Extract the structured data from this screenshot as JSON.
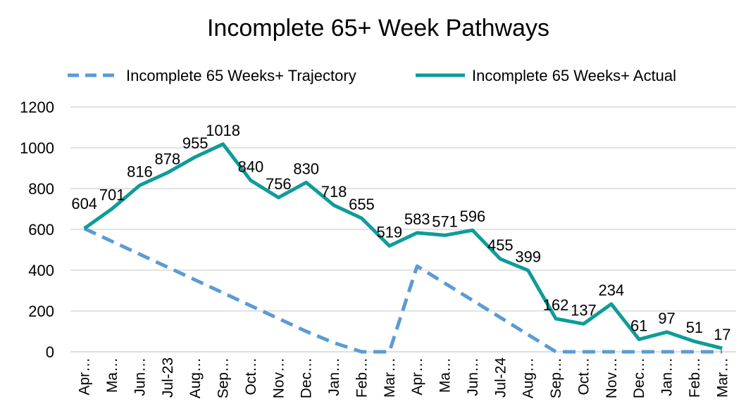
{
  "chart_data": {
    "type": "line",
    "title": "Incomplete 65+ Week Pathways",
    "xlabel": "",
    "ylabel": "",
    "ylim": [
      0,
      1200
    ],
    "yticks": [
      0,
      200,
      400,
      600,
      800,
      1000,
      1200
    ],
    "grid": true,
    "legend_position": "top",
    "categories": [
      "Apr…",
      "Ma…",
      "Jun…",
      "Jul-23",
      "Aug…",
      "Sep…",
      "Oct…",
      "Nov…",
      "Dec…",
      "Jan…",
      "Feb…",
      "Mar…",
      "Apr…",
      "Ma…",
      "Jun…",
      "Jul-24",
      "Aug…",
      "Sep…",
      "Oct…",
      "Nov…",
      "Dec…",
      "Jan…",
      "Feb…",
      "Mar…"
    ],
    "series": [
      {
        "name": "Incomplete 65 Weeks+ Trajectory",
        "color": "#5B9BD5",
        "dashed": true,
        "values": [
          604,
          541,
          478,
          415,
          352,
          289,
          226,
          163,
          100,
          44,
          0,
          0,
          420,
          336,
          252,
          168,
          84,
          0,
          0,
          0,
          0,
          0,
          0,
          0
        ]
      },
      {
        "name": "Incomplete 65 Weeks+ Actual",
        "color": "#0E9C99",
        "dashed": false,
        "values": [
          604,
          701,
          816,
          878,
          955,
          1018,
          840,
          756,
          830,
          718,
          655,
          519,
          583,
          571,
          596,
          455,
          399,
          162,
          137,
          234,
          61,
          97,
          51,
          17
        ],
        "data_labels": [
          "604",
          "701",
          "816",
          "878",
          "955",
          "1018",
          "840",
          "756",
          "830",
          "718",
          "655",
          "519",
          "583",
          "571",
          "596",
          "455",
          "399",
          "162",
          "137",
          "234",
          "61",
          "97",
          "51",
          "17"
        ]
      }
    ]
  }
}
